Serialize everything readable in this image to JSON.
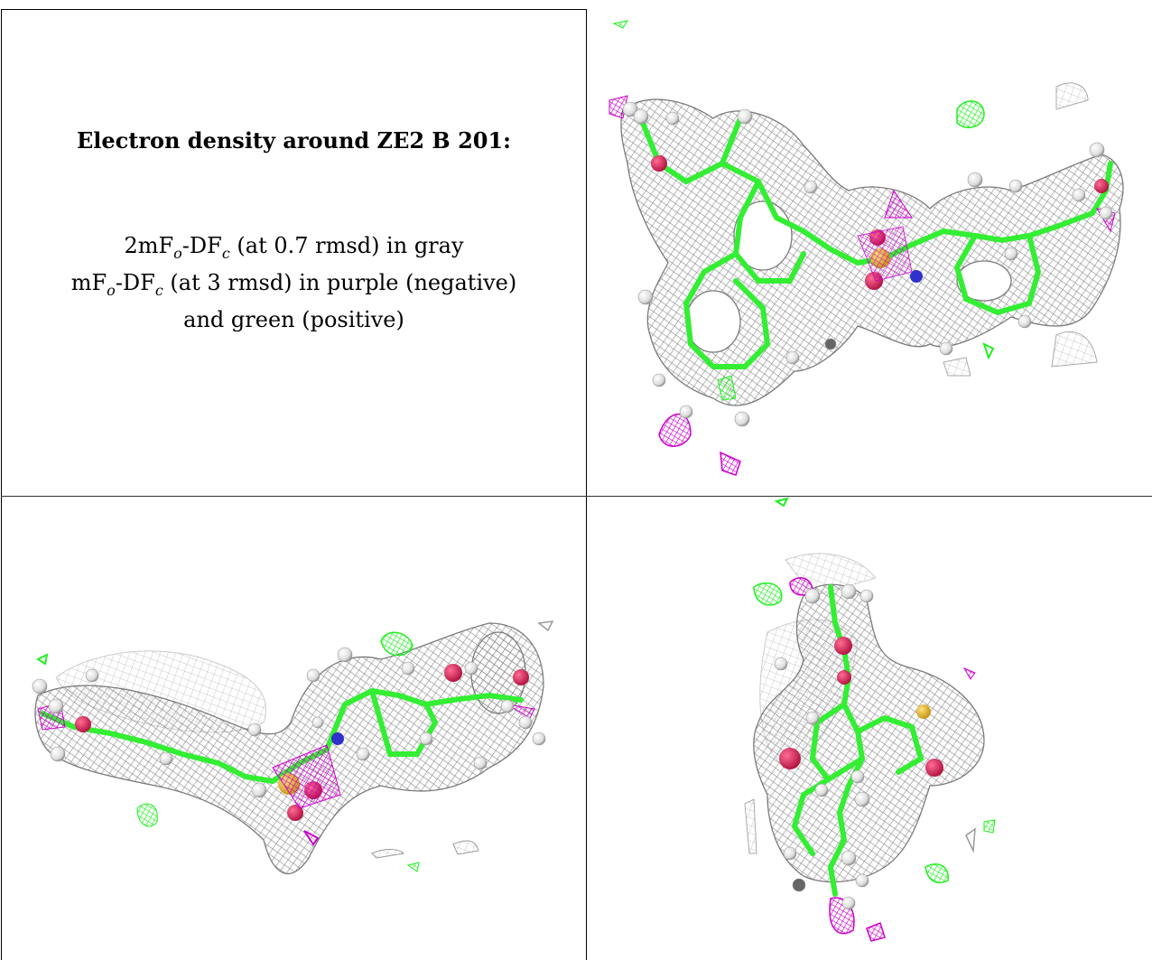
{
  "caption": {
    "title": "Electron density around ZE2 B 201:",
    "lines": [
      {
        "m": "2mF",
        "o": "o",
        "mid": "-DF",
        "c": "c",
        "rest": " (at 0.7 rmsd) in gray"
      },
      {
        "m": "mF",
        "o": "o",
        "mid": "-DF",
        "c": "c",
        "rest": " (at 3 rmsd) in purple (negative)"
      },
      {
        "text": "and green (positive)"
      }
    ]
  },
  "colors": {
    "mesh_gray": "#9a9a9a",
    "mesh_light": "#cfcfcf",
    "carbon": "#33ee33",
    "negative_density": "#cc00cc",
    "positive_density": "#22ee22",
    "oxygen": "#e0205a",
    "nitrogen": "#3030cc",
    "sulfur": "#e8b830",
    "hydrogen": "#f2f2f2"
  },
  "panels": [
    {
      "name": "view-top-right",
      "icon": "molecule-density-view-1"
    },
    {
      "name": "view-bottom-left",
      "icon": "molecule-density-view-2"
    },
    {
      "name": "view-bottom-right",
      "icon": "molecule-density-view-3"
    }
  ]
}
